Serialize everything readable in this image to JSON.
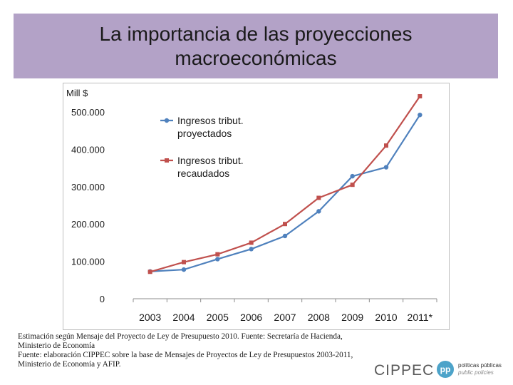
{
  "header": {
    "title_line1": "La importancia de las proyecciones",
    "title_line2": "macroeconómicas"
  },
  "chart_data": {
    "type": "line",
    "ylabel": "Mill $",
    "categories": [
      "2003",
      "2004",
      "2005",
      "2006",
      "2007",
      "2008",
      "2009",
      "2010",
      "2011*"
    ],
    "ylim": [
      0,
      500000
    ],
    "yticks": [
      {
        "value": 0,
        "label": "0"
      },
      {
        "value": 100000,
        "label": "100.000"
      },
      {
        "value": 200000,
        "label": "200.000"
      },
      {
        "value": 300000,
        "label": "300.000"
      },
      {
        "value": 400000,
        "label": "400.000"
      },
      {
        "value": 500000,
        "label": "500.000"
      }
    ],
    "grid": false,
    "legend_position": "top-left",
    "series": [
      {
        "name_line1": "Ingresos tribut.",
        "name_line2": "proyectados",
        "color": "#4f81bd",
        "marker": "circle",
        "values": [
          73000,
          78000,
          106000,
          133000,
          168000,
          234000,
          328000,
          352000,
          492000
        ]
      },
      {
        "name_line1": "Ingresos tribut.",
        "name_line2": "recaudados",
        "color": "#c0504d",
        "marker": "square",
        "values": [
          72000,
          98000,
          119000,
          150000,
          200000,
          270000,
          305000,
          410000,
          542000
        ]
      }
    ]
  },
  "footnote": {
    "line1": "Estimación según Mensaje del Proyecto de Ley de Presupuesto 2010. Fuente: Secretaría de Hacienda, Ministerio de Economía",
    "line2": "Fuente: elaboración CIPPEC sobre la base de Mensajes de Proyectos de Ley de Presupuestos 2003-2011, Ministerio de Economía y AFIP."
  },
  "logo": {
    "brand": "CIPPEC",
    "badge": "pp",
    "caption_line1": "políticas públicas",
    "caption_line2": "public policies"
  }
}
